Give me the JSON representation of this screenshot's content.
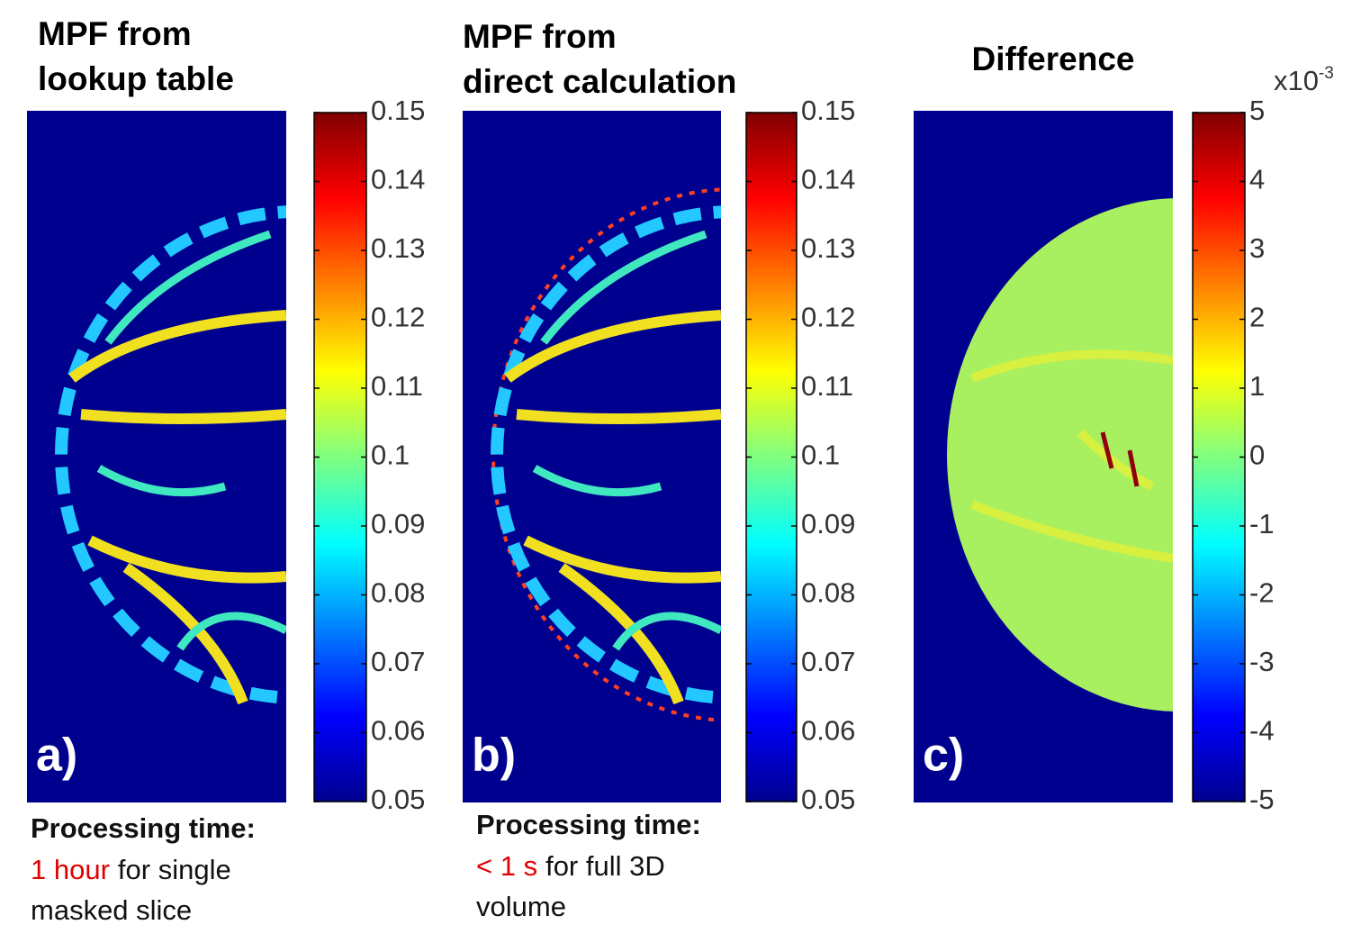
{
  "panels": [
    {
      "title": [
        "MPF from",
        "lookup table"
      ],
      "label": "a)",
      "colorbar": {
        "lim": [
          0.05,
          0.15
        ],
        "ticks": [
          0.05,
          0.06,
          0.07,
          0.08,
          0.09,
          0.1,
          0.11,
          0.12,
          0.13,
          0.14,
          0.15
        ]
      },
      "caption": {
        "heading": "Processing time:",
        "lines": [
          [
            {
              "text": "1 hour",
              "color": "#e00000"
            },
            {
              "text": "for single"
            }
          ],
          [
            {
              "text": "masked slice"
            }
          ]
        ]
      }
    },
    {
      "title": [
        "MPF from",
        "direct calculation"
      ],
      "label": "b)",
      "colorbar": {
        "lim": [
          0.05,
          0.15
        ],
        "ticks": [
          0.05,
          0.06,
          0.07,
          0.08,
          0.09,
          0.1,
          0.11,
          0.12,
          0.13,
          0.14,
          0.15
        ]
      },
      "caption": {
        "heading": "Processing time:",
        "lines": [
          [
            {
              "text": "< 1 s",
              "color": "#e00000"
            },
            {
              "text": "for full 3D"
            }
          ],
          [
            {
              "text": "volume"
            }
          ]
        ]
      }
    },
    {
      "title": [
        "Difference"
      ],
      "label": "c)",
      "colorbar": {
        "lim": [
          -5,
          5
        ],
        "ticks": [
          -5,
          -4,
          -3,
          -2,
          -1,
          0,
          1,
          2,
          3,
          4,
          5
        ],
        "exponent": {
          "base": "x10",
          "power": "-3"
        }
      }
    }
  ]
}
